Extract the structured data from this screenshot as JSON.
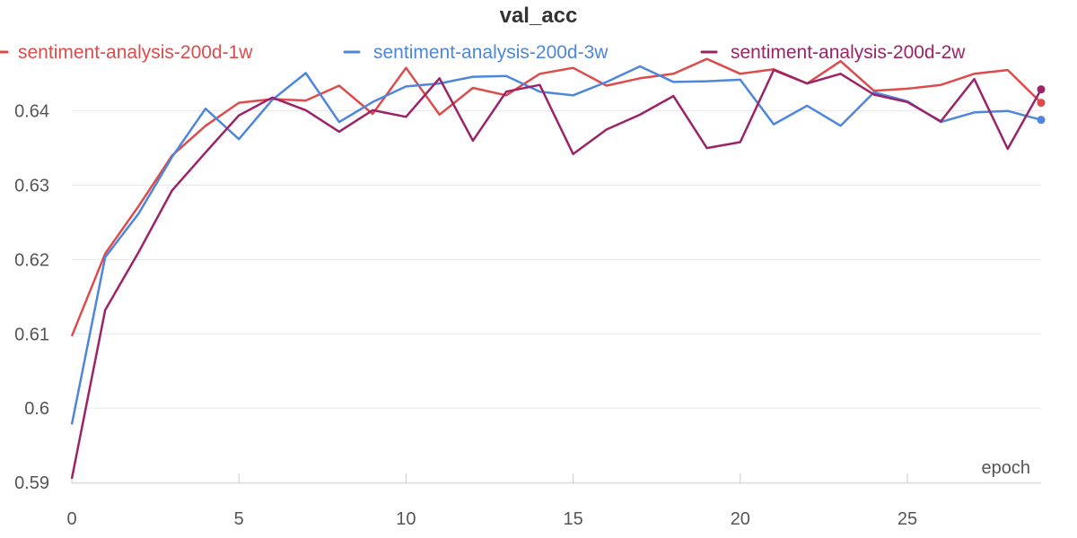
{
  "chart_data": {
    "type": "line",
    "title": "val_acc",
    "xlabel": "epoch",
    "ylabel": "",
    "xlim": [
      0,
      29
    ],
    "ylim": [
      0.59,
      0.6495
    ],
    "x_ticks": [
      0,
      5,
      10,
      15,
      20,
      25
    ],
    "y_ticks": [
      0.59,
      0.6,
      0.61,
      0.62,
      0.63,
      0.64
    ],
    "y_tick_labels": [
      "0.59",
      "0.6",
      "0.61",
      "0.62",
      "0.63",
      "0.64"
    ],
    "grid": true,
    "legend_position": "top",
    "x": [
      0,
      1,
      2,
      3,
      4,
      5,
      6,
      7,
      8,
      9,
      10,
      11,
      12,
      13,
      14,
      15,
      16,
      17,
      18,
      19,
      20,
      21,
      22,
      23,
      24,
      25,
      26,
      27,
      28,
      29
    ],
    "series": [
      {
        "name": "sentiment-analysis-200d-1w",
        "color": "#dd4b4b",
        "values": [
          0.6097,
          0.6208,
          0.6272,
          0.634,
          0.638,
          0.6411,
          0.6416,
          0.6414,
          0.6434,
          0.6396,
          0.6458,
          0.6395,
          0.6431,
          0.6421,
          0.645,
          0.6458,
          0.6434,
          0.6444,
          0.645,
          0.647,
          0.645,
          0.6456,
          0.6437,
          0.6467,
          0.6427,
          0.643,
          0.6435,
          0.645,
          0.6455,
          0.6411
        ]
      },
      {
        "name": "sentiment-analysis-200d-3w",
        "color": "#4d86dc",
        "values": [
          0.5978,
          0.6203,
          0.6262,
          0.6338,
          0.6403,
          0.6362,
          0.6415,
          0.6451,
          0.6385,
          0.6412,
          0.6433,
          0.6437,
          0.6446,
          0.6447,
          0.6426,
          0.6421,
          0.6439,
          0.646,
          0.6439,
          0.644,
          0.6442,
          0.6382,
          0.6407,
          0.638,
          0.6425,
          0.6413,
          0.6385,
          0.6398,
          0.64,
          0.6388
        ]
      },
      {
        "name": "sentiment-analysis-200d-2w",
        "color": "#9b2366",
        "values": [
          0.5905,
          0.6132,
          0.621,
          0.6293,
          0.6344,
          0.6394,
          0.6418,
          0.6401,
          0.6372,
          0.6401,
          0.6392,
          0.6444,
          0.636,
          0.6426,
          0.6435,
          0.6342,
          0.6375,
          0.6395,
          0.642,
          0.635,
          0.6358,
          0.6455,
          0.6437,
          0.645,
          0.6422,
          0.6412,
          0.6386,
          0.6443,
          0.6349,
          0.6429
        ]
      }
    ]
  }
}
